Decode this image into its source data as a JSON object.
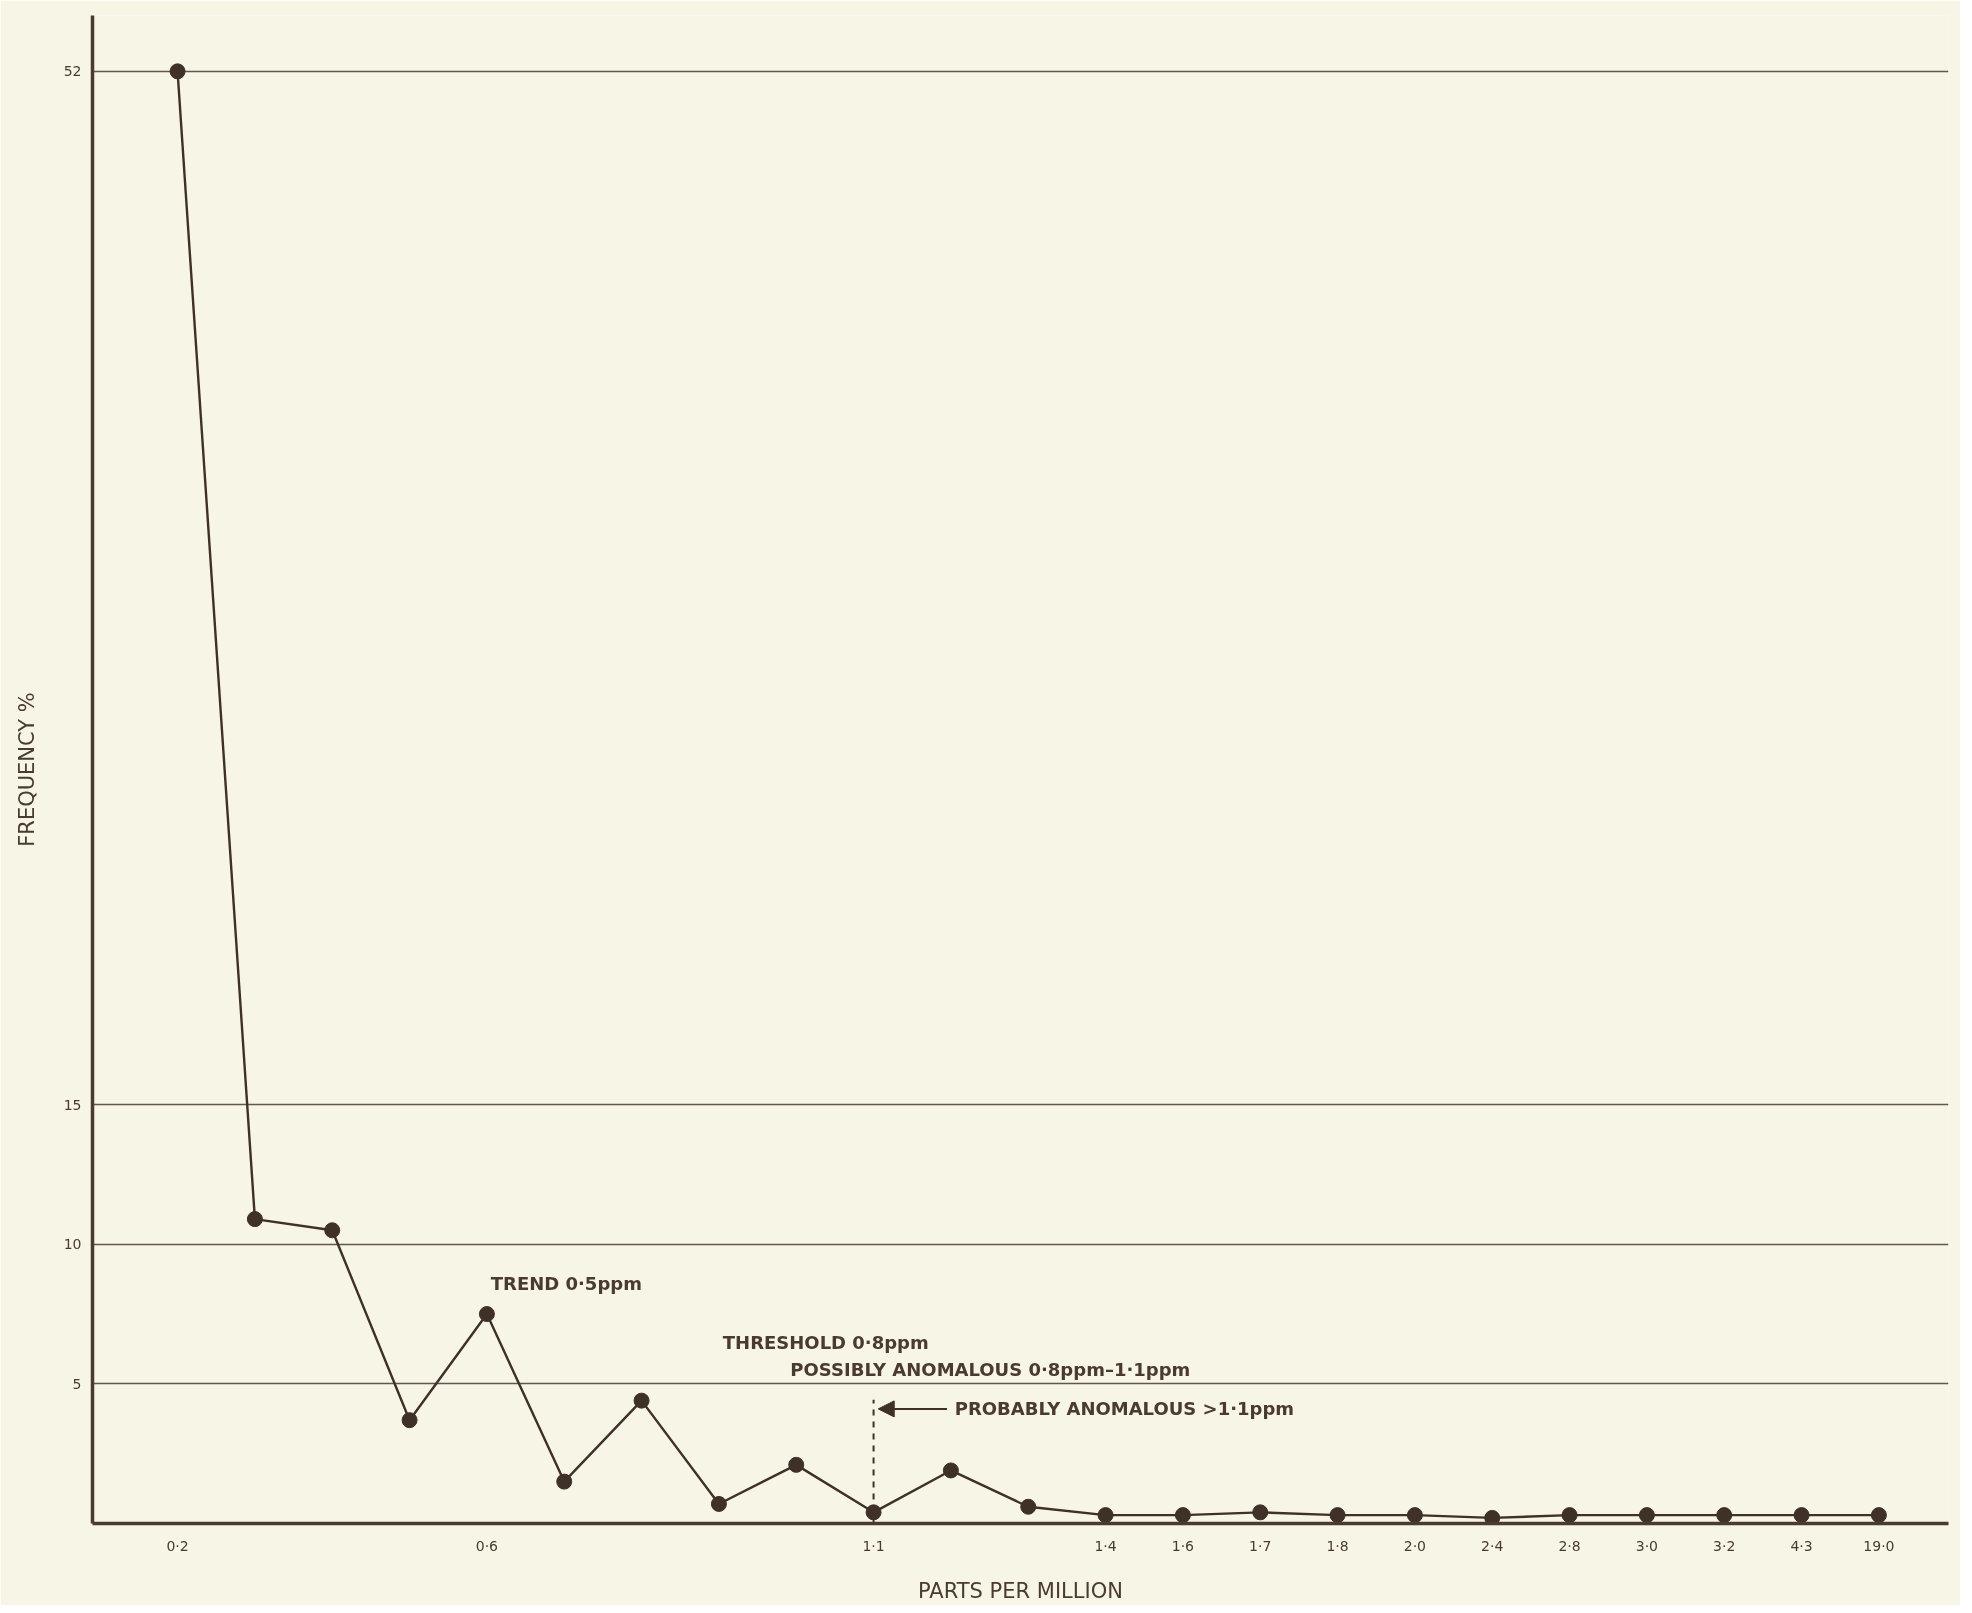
{
  "chart_data": {
    "type": "line",
    "xlabel": "PARTS PER MILLION",
    "ylabel": "FREQUENCY %",
    "categories": [
      "0·2",
      null,
      null,
      null,
      "0·6",
      null,
      null,
      null,
      null,
      "1·1",
      null,
      null,
      "1·4",
      "1·6",
      "1·7",
      "1·8",
      "2·0",
      "2·4",
      "2·8",
      "3·0",
      "3·2",
      "4·3",
      "19·0"
    ],
    "series": [
      {
        "color": "#3f3028",
        "values": [
          52,
          10.9,
          10.5,
          3.7,
          7.5,
          1.5,
          4.4,
          0.7,
          2.1,
          0.4,
          1.9,
          0.6,
          0.3,
          0.3,
          0.4,
          0.3,
          0.3,
          0.2,
          0.3,
          0.3,
          0.3,
          0.3,
          0.3
        ]
      }
    ],
    "ylim": [
      0,
      54
    ],
    "yticks": [
      5,
      10,
      15,
      52
    ],
    "grid": "y",
    "marker": "circle",
    "line_style": "solid",
    "ref_lines": [
      {
        "axis": "x",
        "value": "1·1",
        "label": "PROBABLY ANOMALOUS >1·1ppm",
        "color": "#3f3028",
        "line_style": "dashed"
      }
    ],
    "annotations": [
      "TREND 0·5ppm",
      "THRESHOLD 0·8ppm",
      "POSSIBLY ANOMALOUS 0·8ppm–1·1ppm"
    ]
  }
}
